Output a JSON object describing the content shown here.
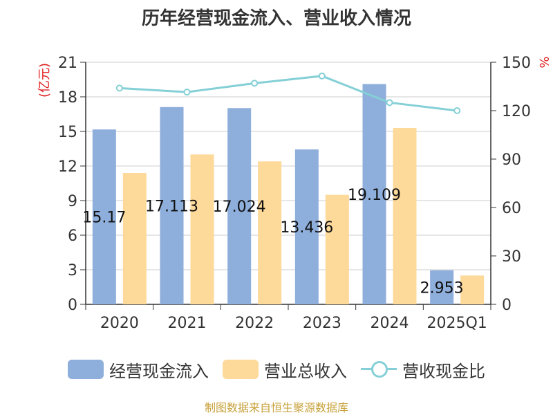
{
  "chart_data": {
    "type": "bar",
    "title": "历年经营现金流入、营业收入情况",
    "categories": [
      "2020",
      "2021",
      "2022",
      "2023",
      "2024",
      "2025Q1"
    ],
    "series": [
      {
        "name": "经营现金流入",
        "type": "bar",
        "axis": "left",
        "color": "#8eaedb",
        "values": [
          15.17,
          17.113,
          17.024,
          13.436,
          19.109,
          2.953
        ],
        "data_labels": [
          "15.17",
          "17.113",
          "17.024",
          "13.436",
          "19.109",
          "2.953"
        ]
      },
      {
        "name": "营业总收入",
        "type": "bar",
        "axis": "left",
        "color": "#fdd99a",
        "values": [
          11.4,
          13.0,
          12.4,
          9.5,
          15.3,
          2.5
        ]
      },
      {
        "name": "营收现金比",
        "type": "line",
        "axis": "right",
        "color": "#84d0d6",
        "values": [
          134,
          131.5,
          137,
          141.5,
          125,
          120
        ]
      }
    ],
    "y_left": {
      "label": "(亿元)",
      "label_color": "#e02020",
      "ticks": [
        "0",
        "3",
        "6",
        "9",
        "12",
        "15",
        "18",
        "21"
      ],
      "ylim": [
        0,
        21
      ]
    },
    "y_right": {
      "label": "%",
      "label_color": "#e02020",
      "ticks": [
        "0",
        "30",
        "60",
        "90",
        "120",
        "150"
      ],
      "ylim": [
        0,
        150
      ]
    },
    "grid": true,
    "legend_position": "bottom"
  },
  "source": {
    "text": "制图数据来自恒生聚源数据库",
    "color": "#c8a23c"
  }
}
